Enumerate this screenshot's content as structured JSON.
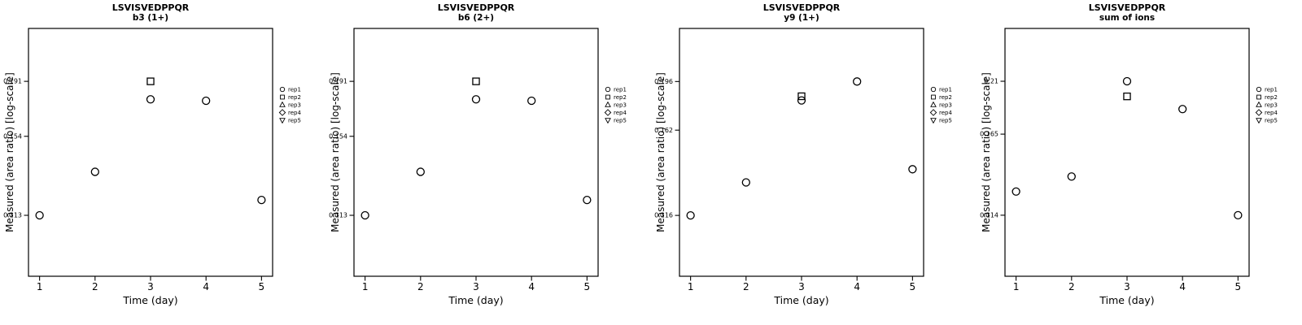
{
  "figure": {
    "peptide": "LSVISVEDPPQR",
    "legend": [
      {
        "symbol": "circle",
        "label": "rep1"
      },
      {
        "symbol": "square",
        "label": "rep2"
      },
      {
        "symbol": "triangle",
        "label": "rep3"
      },
      {
        "symbol": "diamond",
        "label": "rep4"
      },
      {
        "symbol": "triangle-down",
        "label": "rep5"
      }
    ]
  },
  "chart_data": [
    {
      "type": "scatter",
      "title": "LSVISVEDPPQR",
      "subtitle": "b3 (1+)",
      "xlabel": "Time (day)",
      "ylabel": "Measured (area ratio) [log-scale]",
      "x_ticks": [
        1,
        2,
        3,
        4,
        5
      ],
      "y_ticks": [
        0.113,
        0.154,
        0.191
      ],
      "xlim": [
        0.8,
        5.2
      ],
      "ylim": [
        0.089,
        0.235
      ],
      "y_scale": "log",
      "grid": false,
      "legend_position": "right",
      "points": [
        {
          "x": 1,
          "y": 0.113,
          "symbol": "circle"
        },
        {
          "x": 2,
          "y": 0.134,
          "symbol": "circle"
        },
        {
          "x": 3,
          "y": 0.178,
          "symbol": "circle"
        },
        {
          "x": 3,
          "y": 0.191,
          "symbol": "square"
        },
        {
          "x": 4,
          "y": 0.177,
          "symbol": "circle"
        },
        {
          "x": 5,
          "y": 0.12,
          "symbol": "circle"
        }
      ]
    },
    {
      "type": "scatter",
      "title": "LSVISVEDPPQR",
      "subtitle": "b6 (2+)",
      "xlabel": "Time (day)",
      "ylabel": "Measured (area ratio) [log-scale]",
      "x_ticks": [
        1,
        2,
        3,
        4,
        5
      ],
      "y_ticks": [
        0.113,
        0.154,
        0.191
      ],
      "xlim": [
        0.8,
        5.2
      ],
      "ylim": [
        0.089,
        0.235
      ],
      "y_scale": "log",
      "grid": false,
      "legend_position": "right",
      "points": [
        {
          "x": 1,
          "y": 0.113,
          "symbol": "circle"
        },
        {
          "x": 2,
          "y": 0.134,
          "symbol": "circle"
        },
        {
          "x": 3,
          "y": 0.178,
          "symbol": "circle"
        },
        {
          "x": 3,
          "y": 0.191,
          "symbol": "square"
        },
        {
          "x": 4,
          "y": 0.177,
          "symbol": "circle"
        },
        {
          "x": 5,
          "y": 0.12,
          "symbol": "circle"
        }
      ]
    },
    {
      "type": "scatter",
      "title": "LSVISVEDPPQR",
      "subtitle": "y9 (1+)",
      "xlabel": "Time (day)",
      "ylabel": "Measured (area ratio) [log-scale]",
      "x_ticks": [
        1,
        2,
        3,
        4,
        5
      ],
      "y_ticks": [
        0.116,
        0.162,
        0.196
      ],
      "xlim": [
        0.8,
        5.2
      ],
      "ylim": [
        0.0914,
        0.2413
      ],
      "y_scale": "log",
      "grid": false,
      "legend_position": "right",
      "points": [
        {
          "x": 1,
          "y": 0.116,
          "symbol": "circle"
        },
        {
          "x": 2,
          "y": 0.132,
          "symbol": "circle"
        },
        {
          "x": 3,
          "y": 0.182,
          "symbol": "circle"
        },
        {
          "x": 3,
          "y": 0.185,
          "symbol": "square"
        },
        {
          "x": 4,
          "y": 0.196,
          "symbol": "circle"
        },
        {
          "x": 5,
          "y": 0.139,
          "symbol": "circle"
        }
      ]
    },
    {
      "type": "scatter",
      "title": "LSVISVEDPPQR",
      "subtitle": "sum of ions",
      "xlabel": "Time (day)",
      "ylabel": "Measured (area ratio) [log-scale]",
      "x_ticks": [
        1,
        2,
        3,
        4,
        5
      ],
      "y_ticks": [
        0.114,
        0.165,
        0.21
      ],
      "xlim": [
        0.8,
        5.2
      ],
      "ylim": [
        0.0863,
        0.2672
      ],
      "y_scale": "log",
      "grid": false,
      "legend_position": "right",
      "points": [
        {
          "x": 1,
          "y": 0.127,
          "symbol": "circle"
        },
        {
          "x": 2,
          "y": 0.136,
          "symbol": "circle"
        },
        {
          "x": 3,
          "y": 0.21,
          "symbol": "circle"
        },
        {
          "x": 3,
          "y": 0.196,
          "symbol": "square"
        },
        {
          "x": 4,
          "y": 0.185,
          "symbol": "circle"
        },
        {
          "x": 5,
          "y": 0.114,
          "symbol": "circle"
        }
      ]
    }
  ]
}
